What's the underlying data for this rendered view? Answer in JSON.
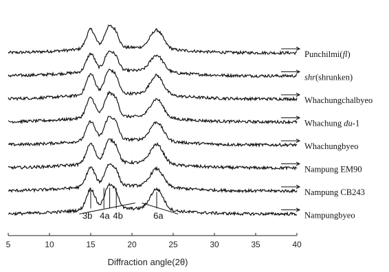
{
  "chart_data": {
    "type": "line",
    "xlabel": "Diffraction  angle(2θ)",
    "ylabel": "",
    "xlim": [
      5,
      40
    ],
    "x_ticks": [
      5,
      10,
      15,
      20,
      25,
      30,
      35,
      40
    ],
    "grid": false,
    "legend": "right-of-each-trace",
    "series": [
      {
        "name": "Punchilmi(fl)",
        "name_parts": {
          "main": "Punchilmi(",
          "italic": "fl",
          "tail": ")"
        },
        "peaks": [
          {
            "x": 15.0,
            "height": 28
          },
          {
            "x": 17.2,
            "height": 30
          },
          {
            "x": 23.0,
            "height": 27
          }
        ]
      },
      {
        "name": "shr(shrunken)",
        "name_parts": {
          "italic": "shr",
          "tail": "(shrunken)"
        },
        "peaks": [
          {
            "x": 15.0,
            "height": 26
          },
          {
            "x": 17.2,
            "height": 27
          },
          {
            "x": 23.0,
            "height": 24
          }
        ]
      },
      {
        "name": "Whachungchalbyeo",
        "peaks": [
          {
            "x": 15.0,
            "height": 30
          },
          {
            "x": 17.2,
            "height": 33
          },
          {
            "x": 23.0,
            "height": 28
          }
        ]
      },
      {
        "name": "Whachung du-1",
        "name_parts": {
          "main": "Whachung ",
          "italic": "du",
          "tail": "-1"
        },
        "peaks": [
          {
            "x": 15.0,
            "height": 29
          },
          {
            "x": 17.2,
            "height": 33
          },
          {
            "x": 23.0,
            "height": 27
          }
        ]
      },
      {
        "name": "Whachungbyeo",
        "peaks": [
          {
            "x": 15.0,
            "height": 28
          },
          {
            "x": 17.2,
            "height": 32
          },
          {
            "x": 23.0,
            "height": 27
          }
        ]
      },
      {
        "name": "Nampung EM90",
        "peaks": [
          {
            "x": 15.0,
            "height": 29
          },
          {
            "x": 17.2,
            "height": 32
          },
          {
            "x": 23.0,
            "height": 28
          }
        ]
      },
      {
        "name": "Nampung CB243",
        "peaks": [
          {
            "x": 15.0,
            "height": 28
          },
          {
            "x": 17.2,
            "height": 30
          },
          {
            "x": 23.0,
            "height": 26
          }
        ]
      },
      {
        "name": "Nampungbyeo",
        "peaks": [
          {
            "x": 15.0,
            "height": 30
          },
          {
            "x": 17.2,
            "height": 33
          },
          {
            "x": 23.0,
            "height": 30
          }
        ]
      }
    ],
    "annotations": [
      {
        "text": "3b",
        "x": 14.6
      },
      {
        "text": "4a",
        "x": 16.7
      },
      {
        "text": "4b",
        "x": 18.3
      },
      {
        "text": "6a",
        "x": 23.2
      }
    ]
  }
}
